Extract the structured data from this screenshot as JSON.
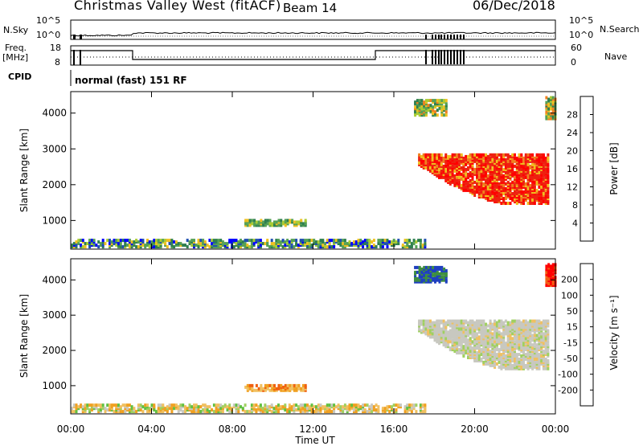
{
  "header": {
    "station": "Christmas Valley West (fitACF)",
    "beam": "Beam 14",
    "date": "06/Dec/2018"
  },
  "status_panel": {
    "nsky_label": "N.Sky",
    "nsearch_label": "N.Search",
    "freq_label_line1": "Freq.",
    "freq_label_line2": "[MHz]",
    "nave_label": "Nave",
    "cpid_label": "CPID",
    "cpid_value": "normal (fast) 151 RF",
    "nsky_ticks": [
      "10^5",
      "10^0"
    ],
    "nsearch_ticks": [
      "10^5",
      "10^0"
    ],
    "freq_ticks": [
      "18",
      "8"
    ],
    "nave_ticks": [
      "60",
      "0"
    ]
  },
  "colors": {
    "power": [
      "#0000ff",
      "#1f4fb0",
      "#2f7f4f",
      "#55a055",
      "#aacc33",
      "#f0c020",
      "#f08020",
      "#ee2010",
      "#ff0000"
    ],
    "velocity": [
      "#1f3fc0",
      "#3f8f3f",
      "#60c040",
      "#a0d060",
      "#c8c8c0",
      "#f0c060",
      "#f0a020",
      "#f06010",
      "#ff0000"
    ]
  },
  "chart_data": [
    {
      "type": "heatmap",
      "name": "power",
      "ylabel": "Slant Range [km]",
      "xlabel": "",
      "x_ticks": [
        "00:00",
        "04:00",
        "08:00",
        "12:00",
        "16:00",
        "20:00",
        "00:00"
      ],
      "y_ticks": [
        1000,
        2000,
        3000,
        4000
      ],
      "ylim": [
        200,
        4600
      ],
      "xlim_hours": [
        0,
        24
      ],
      "colorbar_label": "Power [dB]",
      "colorbar_ticks": [
        "28",
        "24",
        "20",
        "16",
        "12",
        "8",
        "4"
      ],
      "regions": [
        {
          "t0": 0.0,
          "t1": 17.5,
          "r0": 220,
          "r1": 420,
          "level": "low-mixed"
        },
        {
          "t0": 8.6,
          "t1": 11.6,
          "r0": 820,
          "r1": 1000,
          "level": "mid"
        },
        {
          "t0": 17.0,
          "t1": 18.6,
          "r0": 3900,
          "r1": 4350,
          "level": "mixed"
        },
        {
          "t0": 17.2,
          "t1": 23.6,
          "r0": 1300,
          "r1": 2800,
          "level": "high"
        },
        {
          "t0": 23.5,
          "t1": 24.0,
          "r0": 3800,
          "r1": 4400,
          "level": "mixed"
        }
      ]
    },
    {
      "type": "heatmap",
      "name": "velocity",
      "ylabel": "Slant Range [km]",
      "xlabel": "Time UT",
      "x_ticks": [
        "00:00",
        "04:00",
        "08:00",
        "12:00",
        "16:00",
        "20:00",
        "00:00"
      ],
      "y_ticks": [
        1000,
        2000,
        3000,
        4000
      ],
      "ylim": [
        200,
        4600
      ],
      "xlim_hours": [
        0,
        24
      ],
      "colorbar_label": "Velocity [m s⁻¹]",
      "colorbar_ticks": [
        "200",
        "100",
        "50",
        "15",
        "-15",
        "-50",
        "-100",
        "-200"
      ],
      "regions": [
        {
          "t0": 0.0,
          "t1": 17.5,
          "r0": 220,
          "r1": 420,
          "level": "orange-green"
        },
        {
          "t0": 8.6,
          "t1": 11.6,
          "r0": 820,
          "r1": 1000,
          "level": "orange"
        },
        {
          "t0": 17.0,
          "t1": 18.6,
          "r0": 3900,
          "r1": 4350,
          "level": "blue"
        },
        {
          "t0": 17.2,
          "t1": 23.6,
          "r0": 1300,
          "r1": 2800,
          "level": "grey"
        },
        {
          "t0": 23.5,
          "t1": 24.0,
          "r0": 3800,
          "r1": 4400,
          "level": "red"
        }
      ]
    }
  ]
}
